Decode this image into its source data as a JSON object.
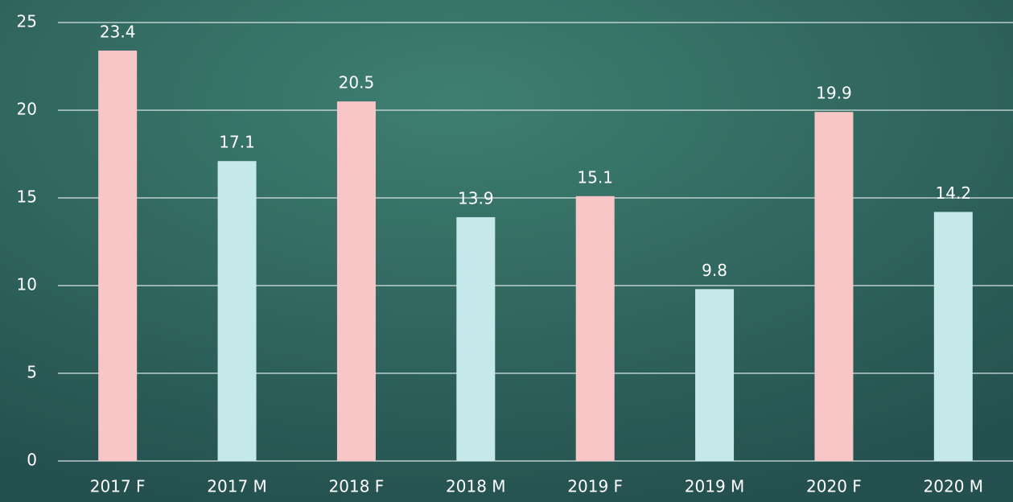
{
  "chart_data": {
    "type": "bar",
    "categories": [
      "2017 F",
      "2017 M",
      "2018 F",
      "2018 M",
      "2019 F",
      "2019 M",
      "2020 F",
      "2020 M"
    ],
    "values": [
      23.4,
      17.1,
      20.5,
      13.9,
      15.1,
      9.8,
      19.9,
      14.2
    ],
    "colors": [
      "#f8c6c6",
      "#c5e8ea",
      "#f8c6c6",
      "#c5e8ea",
      "#f8c6c6",
      "#c5e8ea",
      "#f8c6c6",
      "#c5e8ea"
    ],
    "ylim": [
      0,
      25
    ],
    "yticks": [
      0,
      5,
      10,
      15,
      20,
      25
    ],
    "grid": true
  }
}
